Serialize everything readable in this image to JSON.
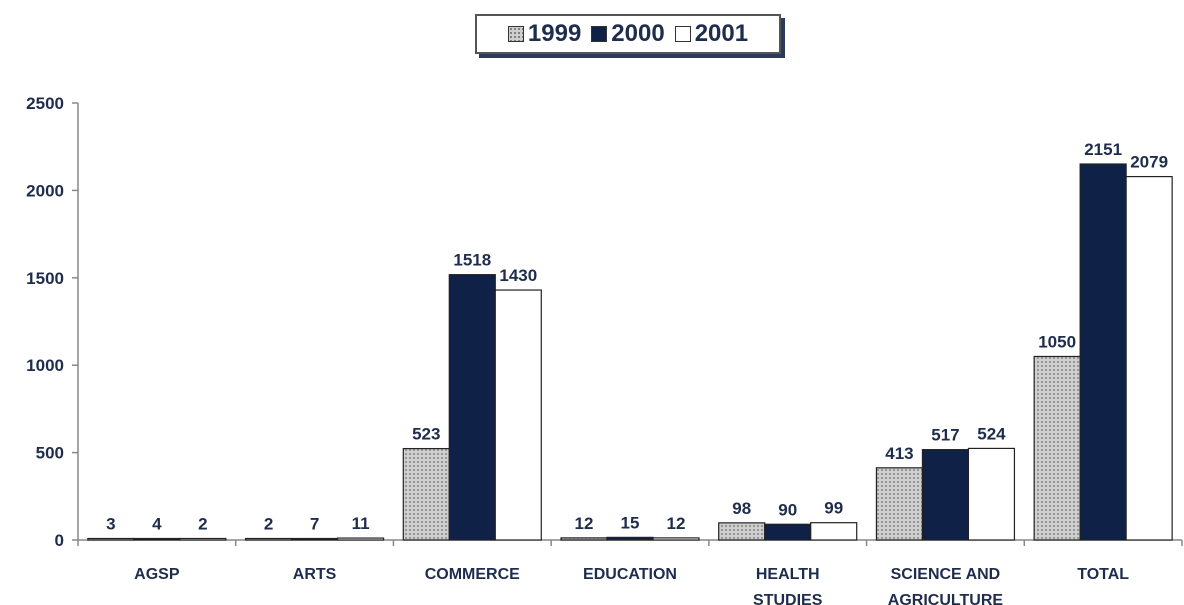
{
  "colors": {
    "s1999": "#cfcfcf",
    "s2000": "#0f2147",
    "s2001": "#ffffff",
    "text": "#1f2d4d",
    "axis": "#888888"
  },
  "legend": {
    "items": [
      {
        "label": "1999",
        "key": "s1999"
      },
      {
        "label": "2000",
        "key": "s2000"
      },
      {
        "label": "2001",
        "key": "s2001"
      }
    ]
  },
  "chart_data": {
    "type": "bar",
    "categories": [
      [
        "AGSP"
      ],
      [
        "ARTS"
      ],
      [
        "COMMERCE"
      ],
      [
        "EDUCATION"
      ],
      [
        "HEALTH",
        "STUDIES"
      ],
      [
        "SCIENCE AND",
        "AGRICULTURE"
      ],
      [
        "TOTAL"
      ]
    ],
    "series": [
      {
        "name": "1999",
        "values": [
          3,
          2,
          523,
          12,
          98,
          413,
          1050
        ]
      },
      {
        "name": "2000",
        "values": [
          4,
          7,
          1518,
          15,
          90,
          517,
          2151
        ]
      },
      {
        "name": "2001",
        "values": [
          2,
          11,
          1430,
          12,
          99,
          524,
          2079
        ]
      }
    ],
    "ylim": [
      0,
      2500
    ],
    "yticks": [
      0,
      500,
      1000,
      1500,
      2000,
      2500
    ],
    "grid": false,
    "legend_position": "top-center"
  }
}
